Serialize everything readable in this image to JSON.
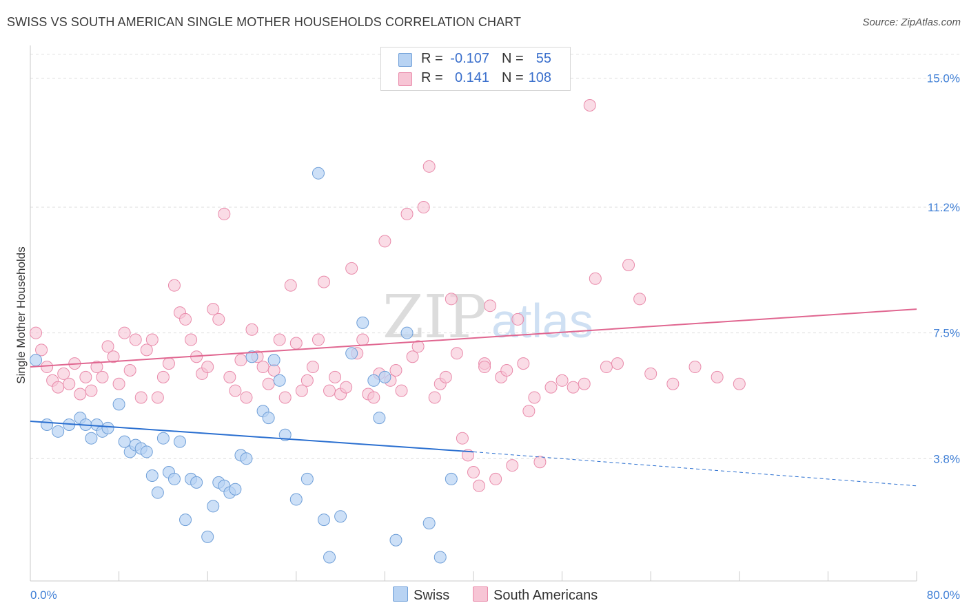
{
  "header": {
    "title": "SWISS VS SOUTH AMERICAN SINGLE MOTHER HOUSEHOLDS CORRELATION CHART",
    "source": "Source: ZipAtlas.com"
  },
  "legend": {
    "rows": [
      {
        "r_label": "R =",
        "r_value": "-0.107",
        "n_label": "N =",
        "n_value": "55"
      },
      {
        "r_label": "R =",
        "r_value": "0.141",
        "n_label": "N =",
        "n_value": "108"
      }
    ],
    "bottom": [
      "Swiss",
      "South Americans"
    ]
  },
  "watermark": {
    "part1": "ZIP",
    "part2": "atlas"
  },
  "colors": {
    "swiss_fill": "#b8d3f3",
    "swiss_stroke": "#6f9fd8",
    "swiss_line": "#2a6fd0",
    "sa_fill": "#f7c5d5",
    "sa_stroke": "#e98aaa",
    "sa_line": "#e06690",
    "tick_text": "#3f7fd6"
  },
  "chart_data": {
    "type": "scatter",
    "title": "SWISS VS SOUTH AMERICAN SINGLE MOTHER HOUSEHOLDS CORRELATION CHART",
    "ylabel": "Single Mother Households",
    "xlim": [
      0,
      80
    ],
    "ylim": [
      0.2,
      15.8
    ],
    "x_tick_labels": [
      {
        "value": 0,
        "label": "0.0%"
      },
      {
        "value": 80,
        "label": "80.0%"
      }
    ],
    "y_tick_labels": [
      {
        "value": 3.8,
        "label": "3.8%"
      },
      {
        "value": 7.5,
        "label": "7.5%"
      },
      {
        "value": 11.2,
        "label": "11.2%"
      },
      {
        "value": 15.0,
        "label": "15.0%"
      }
    ],
    "grid": "horizontal dashed",
    "series": [
      {
        "name": "Swiss",
        "r": -0.107,
        "n": 55,
        "trend": {
          "x0": 0,
          "y0": 4.9,
          "x1": 40,
          "y1": 4.0,
          "dashed_to_x": 80,
          "dashed_to_y": 3.0
        },
        "points": [
          [
            0.5,
            6.7
          ],
          [
            1.5,
            4.8
          ],
          [
            2.5,
            4.6
          ],
          [
            3.5,
            4.8
          ],
          [
            4.5,
            5.0
          ],
          [
            5,
            4.8
          ],
          [
            5.5,
            4.4
          ],
          [
            6,
            4.8
          ],
          [
            6.5,
            4.6
          ],
          [
            7,
            4.7
          ],
          [
            8,
            5.4
          ],
          [
            8.5,
            4.3
          ],
          [
            9,
            4.0
          ],
          [
            9.5,
            4.2
          ],
          [
            10,
            4.1
          ],
          [
            10.5,
            4.0
          ],
          [
            11,
            3.3
          ],
          [
            11.5,
            2.8
          ],
          [
            12,
            4.4
          ],
          [
            12.5,
            3.4
          ],
          [
            13,
            3.2
          ],
          [
            13.5,
            4.3
          ],
          [
            14,
            2.0
          ],
          [
            14.5,
            3.2
          ],
          [
            15,
            3.1
          ],
          [
            16,
            1.5
          ],
          [
            16.5,
            2.4
          ],
          [
            17,
            3.1
          ],
          [
            17.5,
            3.0
          ],
          [
            18,
            2.8
          ],
          [
            18.5,
            2.9
          ],
          [
            19,
            3.9
          ],
          [
            19.5,
            3.8
          ],
          [
            20,
            6.8
          ],
          [
            21,
            5.2
          ],
          [
            21.5,
            5.0
          ],
          [
            22,
            6.7
          ],
          [
            22.5,
            6.1
          ],
          [
            23,
            4.5
          ],
          [
            24,
            2.6
          ],
          [
            25,
            3.2
          ],
          [
            26,
            12.2
          ],
          [
            26.5,
            2.0
          ],
          [
            27,
            0.9
          ],
          [
            28,
            2.1
          ],
          [
            29,
            6.9
          ],
          [
            30,
            7.8
          ],
          [
            31,
            6.1
          ],
          [
            31.5,
            5.0
          ],
          [
            32,
            6.2
          ],
          [
            33,
            1.4
          ],
          [
            34,
            7.5
          ],
          [
            36,
            1.9
          ],
          [
            38,
            3.2
          ],
          [
            37,
            0.9
          ]
        ]
      },
      {
        "name": "South Americans",
        "r": 0.141,
        "n": 108,
        "trend": {
          "x0": 0,
          "y0": 6.5,
          "x1": 80,
          "y1": 8.2
        },
        "points": [
          [
            0.5,
            7.5
          ],
          [
            1,
            7.0
          ],
          [
            1.5,
            6.5
          ],
          [
            2,
            6.1
          ],
          [
            2.5,
            5.9
          ],
          [
            3,
            6.3
          ],
          [
            3.5,
            6.0
          ],
          [
            4,
            6.6
          ],
          [
            4.5,
            5.7
          ],
          [
            5,
            6.2
          ],
          [
            5.5,
            5.8
          ],
          [
            6,
            6.5
          ],
          [
            6.5,
            6.2
          ],
          [
            7,
            7.1
          ],
          [
            7.5,
            6.8
          ],
          [
            8,
            6.0
          ],
          [
            8.5,
            7.5
          ],
          [
            9,
            6.4
          ],
          [
            9.5,
            7.3
          ],
          [
            10,
            5.6
          ],
          [
            10.5,
            7.0
          ],
          [
            11,
            7.3
          ],
          [
            11.5,
            5.6
          ],
          [
            12,
            6.2
          ],
          [
            12.5,
            6.6
          ],
          [
            13,
            8.9
          ],
          [
            13.5,
            8.1
          ],
          [
            14,
            7.9
          ],
          [
            14.5,
            7.3
          ],
          [
            15,
            6.8
          ],
          [
            15.5,
            6.3
          ],
          [
            16,
            6.5
          ],
          [
            16.5,
            8.2
          ],
          [
            17,
            7.9
          ],
          [
            17.5,
            11.0
          ],
          [
            18,
            6.2
          ],
          [
            18.5,
            5.8
          ],
          [
            19,
            6.7
          ],
          [
            19.5,
            5.6
          ],
          [
            20,
            7.6
          ],
          [
            20.5,
            6.8
          ],
          [
            21,
            6.5
          ],
          [
            21.5,
            6.0
          ],
          [
            22,
            6.4
          ],
          [
            22.5,
            7.3
          ],
          [
            23,
            5.6
          ],
          [
            23.5,
            8.9
          ],
          [
            24,
            7.2
          ],
          [
            24.5,
            5.8
          ],
          [
            25,
            6.1
          ],
          [
            25.5,
            6.5
          ],
          [
            26,
            7.3
          ],
          [
            26.5,
            9.0
          ],
          [
            27,
            5.8
          ],
          [
            27.5,
            6.2
          ],
          [
            28,
            5.7
          ],
          [
            28.5,
            5.9
          ],
          [
            29,
            9.4
          ],
          [
            29.5,
            6.9
          ],
          [
            30,
            7.3
          ],
          [
            30.5,
            5.7
          ],
          [
            31,
            5.6
          ],
          [
            31.5,
            6.3
          ],
          [
            32,
            10.2
          ],
          [
            32.5,
            6.1
          ],
          [
            33,
            6.4
          ],
          [
            33.5,
            5.8
          ],
          [
            34,
            11.0
          ],
          [
            34.5,
            6.8
          ],
          [
            35,
            7.1
          ],
          [
            35.5,
            11.2
          ],
          [
            36,
            12.4
          ],
          [
            36.5,
            5.6
          ],
          [
            37,
            6.0
          ],
          [
            37.5,
            6.2
          ],
          [
            38,
            8.5
          ],
          [
            38.5,
            6.9
          ],
          [
            39,
            4.4
          ],
          [
            39.5,
            3.9
          ],
          [
            40,
            3.4
          ],
          [
            40.5,
            3.0
          ],
          [
            41,
            6.6
          ],
          [
            41.5,
            8.3
          ],
          [
            42,
            3.2
          ],
          [
            42.5,
            6.2
          ],
          [
            43,
            6.4
          ],
          [
            43.5,
            3.6
          ],
          [
            44,
            7.9
          ],
          [
            44.5,
            6.6
          ],
          [
            45,
            5.2
          ],
          [
            45.5,
            5.6
          ],
          [
            46,
            3.7
          ],
          [
            47,
            5.9
          ],
          [
            48,
            6.1
          ],
          [
            49,
            5.9
          ],
          [
            50,
            6.0
          ],
          [
            51,
            9.1
          ],
          [
            52,
            6.5
          ],
          [
            53,
            6.6
          ],
          [
            54,
            9.5
          ],
          [
            55,
            8.5
          ],
          [
            56,
            6.3
          ],
          [
            58,
            6.0
          ],
          [
            60,
            6.5
          ],
          [
            62,
            6.2
          ],
          [
            64,
            6.0
          ],
          [
            50.5,
            14.2
          ],
          [
            41,
            6.5
          ]
        ]
      }
    ]
  }
}
